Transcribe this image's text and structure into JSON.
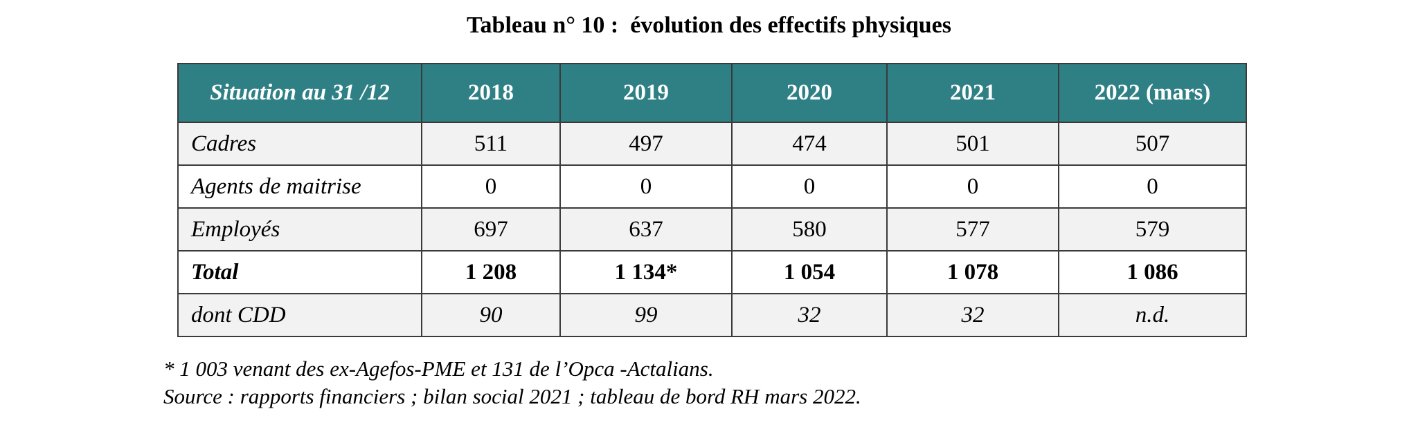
{
  "title": "Tableau n° 10 :  évolution des effectifs physiques",
  "table": {
    "header": [
      "Situation au 31 /12",
      "2018",
      "2019",
      "2020",
      "2021",
      "2022 (mars)"
    ],
    "rows": [
      {
        "label": "Cadres",
        "values": [
          "511",
          "497",
          "474",
          "501",
          "507"
        ]
      },
      {
        "label": "Agents de maitrise",
        "values": [
          "0",
          "0",
          "0",
          "0",
          "0"
        ]
      },
      {
        "label": "Employés",
        "values": [
          "697",
          "637",
          "580",
          "577",
          "579"
        ]
      },
      {
        "label": "Total",
        "values": [
          "1 208",
          "1 134*",
          "1 054",
          "1 078",
          "1 086"
        ]
      },
      {
        "label": "dont CDD",
        "values": [
          "90",
          "99",
          "32",
          "32",
          "n.d."
        ]
      }
    ]
  },
  "notes": {
    "footnote": "* 1 003 venant des ex-Agefos-PME et 131 de l’Opca -Actalians.",
    "source": "Source : rapports financiers ; bilan social 2021 ; tableau de bord RH mars 2022."
  },
  "colors": {
    "header_background": "#2f8085",
    "header_text": "#ffffff",
    "shaded_row": "#f2f2f2"
  }
}
